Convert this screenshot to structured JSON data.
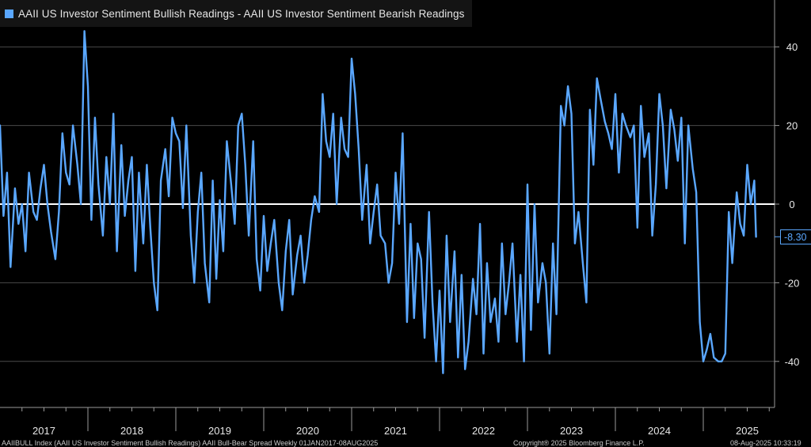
{
  "legend": {
    "text": "AAII US Investor Sentiment Bullish Readings - AAII US Investor Sentiment Bearish Readings",
    "color": "#5aa7ff"
  },
  "last_value_label": "-8.30",
  "footer": {
    "left": "AAIIBULL Index (AAII US Investor Sentiment Bullish Readings) AAII Bull-Bear Spread  Weekly 01JAN2017-08AUG2025",
    "middle": "Copyright® 2025 Bloomberg Finance L.P.",
    "right": "08-Aug-2025 10:33:19"
  },
  "colors": {
    "background": "#000000",
    "line": "#5aa7ff",
    "zero_line": "#ffffff",
    "grid": "#4a4a4a",
    "axis": "#9a9a9a"
  },
  "chart_data": {
    "type": "line",
    "title": "",
    "legend": "top-left",
    "xlabel": "",
    "ylabel": "",
    "x_range": [
      2017.0,
      2025.6
    ],
    "ylim": [
      -52,
      52
    ],
    "y_ticks": [
      -40,
      -20,
      0,
      20,
      40
    ],
    "x_tick_labels": [
      "2017",
      "2018",
      "2019",
      "2020",
      "2021",
      "2022",
      "2023",
      "2024",
      "2025"
    ],
    "grid": true,
    "last_value": -8.3,
    "series": [
      {
        "name": "AAII US Investor Sentiment Bullish Readings - AAII US Investor Sentiment Bearish Readings",
        "x": [
          2017.0,
          2017.04,
          2017.08,
          2017.12,
          2017.17,
          2017.21,
          2017.25,
          2017.29,
          2017.33,
          2017.38,
          2017.42,
          2017.46,
          2017.5,
          2017.54,
          2017.58,
          2017.63,
          2017.67,
          2017.71,
          2017.75,
          2017.79,
          2017.83,
          2017.88,
          2017.92,
          2017.96,
          2018.0,
          2018.04,
          2018.08,
          2018.12,
          2018.17,
          2018.21,
          2018.25,
          2018.29,
          2018.33,
          2018.38,
          2018.42,
          2018.46,
          2018.5,
          2018.54,
          2018.58,
          2018.63,
          2018.67,
          2018.71,
          2018.75,
          2018.79,
          2018.83,
          2018.88,
          2018.92,
          2018.96,
          2019.0,
          2019.04,
          2019.08,
          2019.12,
          2019.17,
          2019.21,
          2019.25,
          2019.29,
          2019.33,
          2019.38,
          2019.42,
          2019.46,
          2019.5,
          2019.54,
          2019.58,
          2019.63,
          2019.67,
          2019.71,
          2019.75,
          2019.79,
          2019.83,
          2019.88,
          2019.92,
          2019.96,
          2020.0,
          2020.04,
          2020.08,
          2020.12,
          2020.17,
          2020.21,
          2020.25,
          2020.29,
          2020.33,
          2020.38,
          2020.42,
          2020.46,
          2020.5,
          2020.54,
          2020.58,
          2020.63,
          2020.67,
          2020.71,
          2020.75,
          2020.79,
          2020.83,
          2020.88,
          2020.92,
          2020.96,
          2021.0,
          2021.04,
          2021.08,
          2021.12,
          2021.17,
          2021.21,
          2021.25,
          2021.29,
          2021.33,
          2021.38,
          2021.42,
          2021.46,
          2021.5,
          2021.54,
          2021.58,
          2021.63,
          2021.67,
          2021.71,
          2021.75,
          2021.79,
          2021.83,
          2021.88,
          2021.92,
          2021.96,
          2022.0,
          2022.04,
          2022.08,
          2022.12,
          2022.17,
          2022.21,
          2022.25,
          2022.29,
          2022.33,
          2022.38,
          2022.42,
          2022.46,
          2022.5,
          2022.54,
          2022.58,
          2022.63,
          2022.67,
          2022.71,
          2022.75,
          2022.79,
          2022.83,
          2022.88,
          2022.92,
          2022.96,
          2023.0,
          2023.04,
          2023.08,
          2023.12,
          2023.17,
          2023.21,
          2023.25,
          2023.29,
          2023.33,
          2023.38,
          2023.42,
          2023.46,
          2023.5,
          2023.54,
          2023.58,
          2023.63,
          2023.67,
          2023.71,
          2023.75,
          2023.79,
          2023.83,
          2023.88,
          2023.92,
          2023.96,
          2024.0,
          2024.04,
          2024.08,
          2024.12,
          2024.17,
          2024.21,
          2024.25,
          2024.29,
          2024.33,
          2024.38,
          2024.42,
          2024.46,
          2024.5,
          2024.54,
          2024.58,
          2024.63,
          2024.67,
          2024.71,
          2024.75,
          2024.79,
          2024.83,
          2024.88,
          2024.92,
          2024.96,
          2025.0,
          2025.04,
          2025.08,
          2025.12,
          2025.17,
          2025.21,
          2025.25,
          2025.29,
          2025.33,
          2025.38,
          2025.42,
          2025.46,
          2025.5,
          2025.54,
          2025.58,
          2025.6
        ],
        "values": [
          20,
          -3,
          8,
          -16,
          4,
          -5,
          0,
          -12,
          8,
          -2,
          -4,
          4,
          10,
          0,
          -7,
          -14,
          -2,
          18,
          8,
          5,
          20,
          10,
          0,
          44,
          30,
          -4,
          22,
          5,
          -8,
          12,
          0,
          23,
          -12,
          15,
          -3,
          6,
          12,
          -17,
          8,
          -10,
          10,
          -6,
          -20,
          -27,
          6,
          14,
          2,
          22,
          18,
          16,
          -1,
          20,
          -8,
          -20,
          -2,
          8,
          -15,
          -25,
          6,
          -19,
          1,
          -12,
          16,
          5,
          -5,
          20,
          23,
          10,
          -8,
          16,
          -14,
          -22,
          -3,
          -17,
          -10,
          -4,
          -20,
          -27,
          -12,
          -4,
          -23,
          -13,
          -8,
          -20,
          -13,
          -4,
          2,
          -2,
          28,
          16,
          12,
          23,
          0,
          22,
          14,
          12,
          37,
          28,
          14,
          -4,
          10,
          -10,
          -2,
          5,
          -8,
          -10,
          -20,
          -15,
          8,
          -5,
          18,
          -30,
          -5,
          -29,
          -10,
          -14,
          -34,
          -2,
          -25,
          -40,
          -22,
          -43,
          -8,
          -30,
          -12,
          -39,
          -18,
          -42,
          -35,
          -19,
          -28,
          -5,
          -38,
          -15,
          -30,
          -24,
          -35,
          -10,
          -28,
          -20,
          -10,
          -35,
          -18,
          -40,
          5,
          -32,
          0,
          -25,
          -15,
          -20,
          -38,
          -10,
          -28,
          25,
          20,
          30,
          23,
          -10,
          -2,
          -15,
          -25,
          24,
          10,
          32,
          27,
          21,
          18,
          14,
          28,
          8,
          23,
          20,
          17,
          20,
          -6,
          25,
          12,
          18,
          -8,
          5,
          28,
          20,
          4,
          24,
          19,
          11,
          22,
          -10,
          20,
          9,
          3,
          -30,
          -40,
          -37,
          -33,
          -39,
          -40,
          -40,
          -38,
          -2,
          -15,
          3,
          -5,
          -8,
          10,
          0,
          6,
          -8.3
        ]
      }
    ]
  }
}
